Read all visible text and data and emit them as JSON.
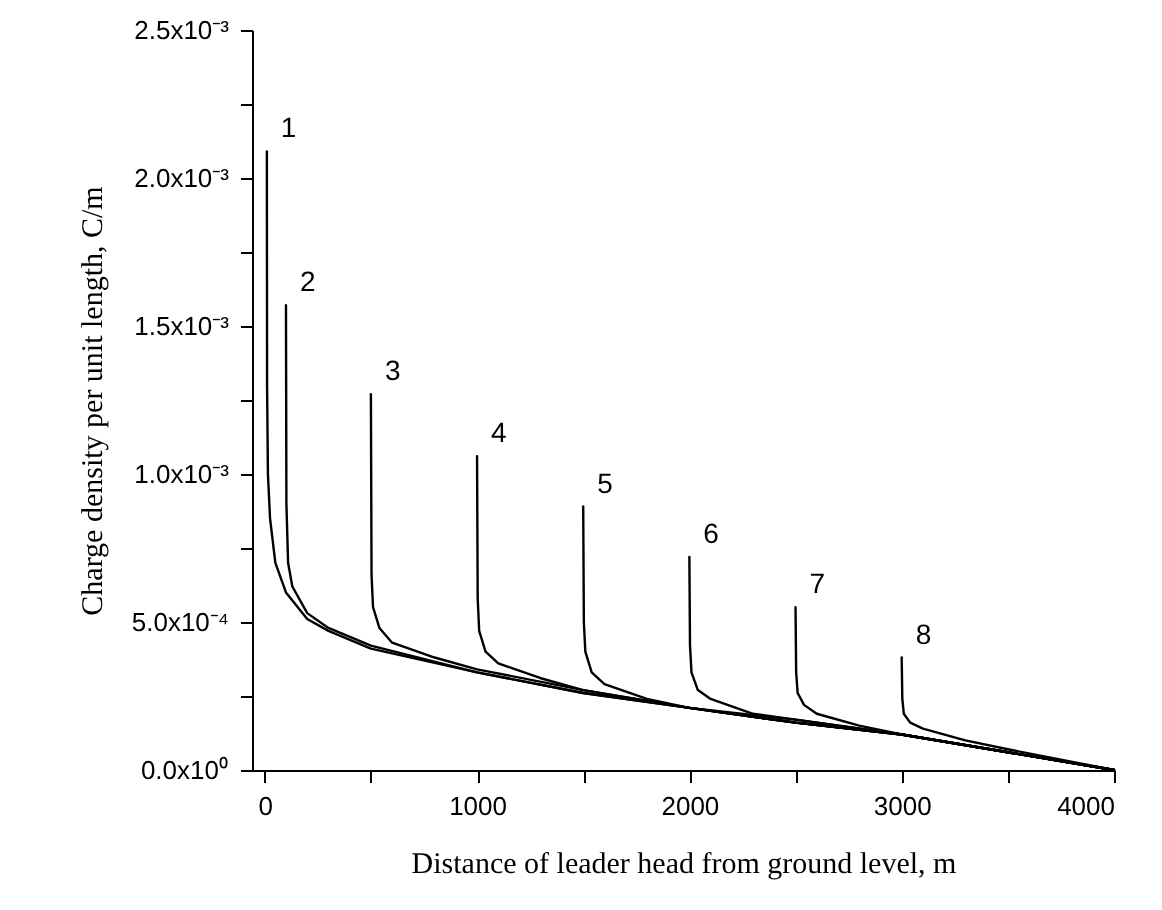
{
  "chart_data": {
    "type": "line",
    "xlabel": "Distance of leader head from ground level, m",
    "ylabel": "Charge density per unit length, C/m",
    "xlim": [
      -60,
      4000
    ],
    "xticks": [
      0,
      {
        "value": 500,
        "label": null
      },
      1000,
      {
        "value": 1500,
        "label": null
      },
      2000,
      {
        "value": 2500,
        "label": null
      },
      3000,
      {
        "value": 3500,
        "label": null
      },
      4000
    ],
    "ylim": [
      0,
      0.0025
    ],
    "yticks": [
      {
        "value": 0,
        "label": "0.0x10⁰"
      },
      {
        "value": 0.00025,
        "label": null
      },
      {
        "value": 0.0005,
        "label": "5.0x10⁻⁴"
      },
      {
        "value": 0.00075,
        "label": null
      },
      {
        "value": 0.001,
        "label": "1.0x10⁻³"
      },
      {
        "value": 0.00125,
        "label": null
      },
      {
        "value": 0.0015,
        "label": "1.5x10⁻³"
      },
      {
        "value": 0.00175,
        "label": null
      },
      {
        "value": 0.002,
        "label": "2.0x10⁻³"
      },
      {
        "value": 0.00225,
        "label": null
      },
      {
        "value": 0.0025,
        "label": "2.5x10⁻³"
      }
    ],
    "grid": false,
    "marker": "none",
    "line_style": "solid",
    "series": [
      {
        "name": "1",
        "color": "#000000",
        "x": [
          10,
          11,
          15,
          25,
          50,
          100,
          200,
          300,
          500,
          1000,
          1500,
          2000,
          2500,
          3000,
          3500,
          4000
        ],
        "values": [
          0.00209,
          0.0013,
          0.001,
          0.00085,
          0.0007,
          0.0006,
          0.00051,
          0.00047,
          0.00041,
          0.00033,
          0.00026,
          0.00021,
          0.00016,
          0.00012,
          6e-05,
          0
        ]
      },
      {
        "name": "2",
        "color": "#000000",
        "x": [
          100,
          102,
          110,
          130,
          200,
          300,
          500,
          1000,
          1500,
          2000,
          2500,
          3000,
          3500,
          4000
        ],
        "values": [
          0.00157,
          0.0009,
          0.0007,
          0.00062,
          0.00053,
          0.00048,
          0.00042,
          0.00033,
          0.00026,
          0.00021,
          0.00016,
          0.00012,
          6e-05,
          0
        ]
      },
      {
        "name": "3",
        "color": "#000000",
        "x": [
          500,
          503,
          510,
          540,
          600,
          800,
          1000,
          1500,
          2000,
          2500,
          3000,
          3500,
          4000
        ],
        "values": [
          0.00127,
          0.00066,
          0.00055,
          0.00048,
          0.00043,
          0.00038,
          0.00034,
          0.00027,
          0.00021,
          0.00016,
          0.00012,
          6e-05,
          0
        ]
      },
      {
        "name": "4",
        "color": "#000000",
        "x": [
          1000,
          1003,
          1010,
          1040,
          1100,
          1300,
          1500,
          2000,
          2500,
          3000,
          3500,
          4000
        ],
        "values": [
          0.00106,
          0.00058,
          0.00047,
          0.0004,
          0.00036,
          0.00031,
          0.00027,
          0.00021,
          0.00016,
          0.00012,
          6e-05,
          0
        ]
      },
      {
        "name": "5",
        "color": "#000000",
        "x": [
          1500,
          1503,
          1510,
          1540,
          1600,
          1800,
          2000,
          2500,
          3000,
          3500,
          4000
        ],
        "values": [
          0.00089,
          0.0005,
          0.0004,
          0.00033,
          0.00029,
          0.00024,
          0.00021,
          0.00017,
          0.00012,
          6e-05,
          0
        ]
      },
      {
        "name": "6",
        "color": "#000000",
        "x": [
          2000,
          2003,
          2010,
          2040,
          2100,
          2300,
          2500,
          3000,
          3500,
          4000
        ],
        "values": [
          0.00072,
          0.00042,
          0.00033,
          0.00027,
          0.00024,
          0.00019,
          0.00017,
          0.00012,
          6e-05,
          0
        ]
      },
      {
        "name": "7",
        "color": "#000000",
        "x": [
          2500,
          2503,
          2510,
          2540,
          2600,
          2800,
          3000,
          3500,
          4000
        ],
        "values": [
          0.00055,
          0.00033,
          0.00026,
          0.00022,
          0.00019,
          0.00015,
          0.00012,
          6e-05,
          0
        ]
      },
      {
        "name": "8",
        "color": "#000000",
        "x": [
          3000,
          3003,
          3010,
          3040,
          3100,
          3300,
          3500,
          4000
        ],
        "values": [
          0.00038,
          0.00024,
          0.00019,
          0.00016,
          0.00014,
          0.0001,
          7e-05,
          0
        ]
      }
    ]
  }
}
